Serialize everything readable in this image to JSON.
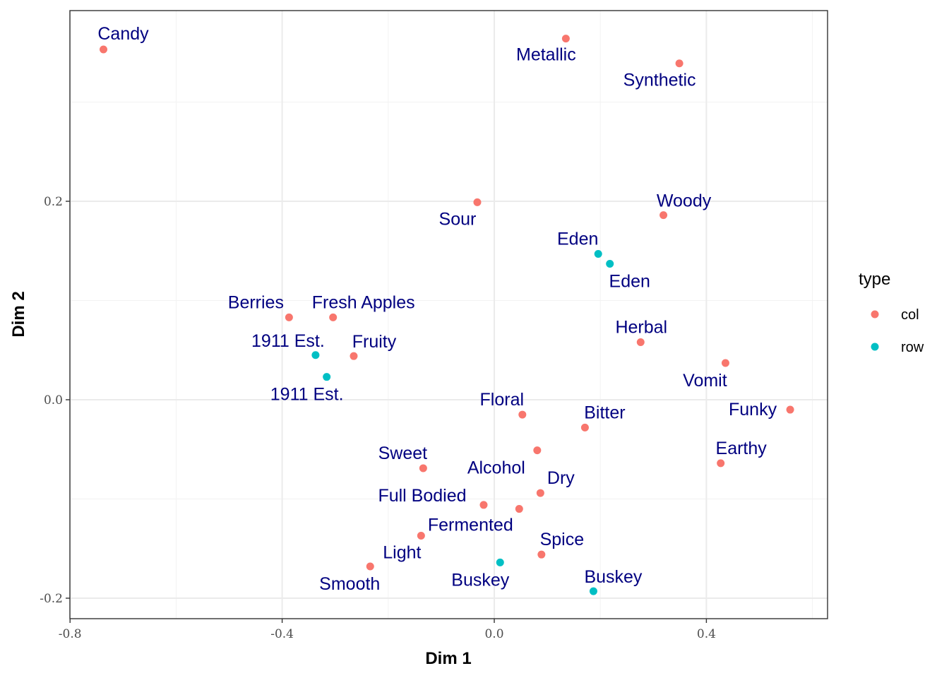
{
  "chart_data": {
    "type": "scatter",
    "title": "",
    "xlabel": "Dim 1",
    "ylabel": "Dim 2",
    "xlim": [
      -0.8,
      0.62
    ],
    "ylim": [
      -0.21,
      0.39
    ],
    "x_ticks": [
      -0.8,
      -0.4,
      0.0,
      0.4
    ],
    "x_tick_labels": [
      "-0.8",
      "-0.4",
      "0.0",
      "0.4"
    ],
    "y_ticks": [
      -0.2,
      0.0,
      0.2
    ],
    "y_tick_labels": [
      "-0.2",
      "0.0",
      "0.2"
    ],
    "grid": true,
    "legend": {
      "title": "type",
      "position": "right",
      "entries": [
        {
          "name": "col",
          "color": "#F8766D"
        },
        {
          "name": "row",
          "color": "#00BFC4"
        }
      ]
    },
    "label_color": "#000080",
    "series": [
      {
        "name": "col",
        "color": "#F8766D",
        "points": [
          {
            "label": "Candy",
            "x": -0.737,
            "y": 0.353
          },
          {
            "label": "Metallic",
            "x": 0.135,
            "y": 0.364
          },
          {
            "label": "Synthetic",
            "x": 0.349,
            "y": 0.339
          },
          {
            "label": "Sour",
            "x": -0.032,
            "y": 0.199
          },
          {
            "label": "Woody",
            "x": 0.319,
            "y": 0.186
          },
          {
            "label": "Berries",
            "x": -0.387,
            "y": 0.083
          },
          {
            "label": "Fresh Apples",
            "x": -0.304,
            "y": 0.083
          },
          {
            "label": "Fruity",
            "x": -0.265,
            "y": 0.044
          },
          {
            "label": "Herbal",
            "x": 0.276,
            "y": 0.058
          },
          {
            "label": "Vomit",
            "x": 0.436,
            "y": 0.037
          },
          {
            "label": "Funky",
            "x": 0.558,
            "y": -0.01
          },
          {
            "label": "Floral",
            "x": 0.053,
            "y": -0.015
          },
          {
            "label": "Bitter",
            "x": 0.171,
            "y": -0.028
          },
          {
            "label": "Alcohol",
            "x": 0.081,
            "y": -0.051
          },
          {
            "label": "Earthy",
            "x": 0.427,
            "y": -0.064
          },
          {
            "label": "Sweet",
            "x": -0.134,
            "y": -0.069
          },
          {
            "label": "Dry",
            "x": 0.087,
            "y": -0.094
          },
          {
            "label": "Full Bodied",
            "x": -0.02,
            "y": -0.106
          },
          {
            "label": "Fermented",
            "x": 0.047,
            "y": -0.11
          },
          {
            "label": "Light",
            "x": -0.138,
            "y": -0.137
          },
          {
            "label": "Spice",
            "x": 0.089,
            "y": -0.156
          },
          {
            "label": "Smooth",
            "x": -0.234,
            "y": -0.168
          }
        ]
      },
      {
        "name": "row",
        "color": "#00BFC4",
        "points": [
          {
            "label": "Eden",
            "x": 0.196,
            "y": 0.147
          },
          {
            "label": "Eden",
            "x": 0.218,
            "y": 0.137
          },
          {
            "label": "1911 Est.",
            "x": -0.337,
            "y": 0.045
          },
          {
            "label": "1911 Est.",
            "x": -0.316,
            "y": 0.023
          },
          {
            "label": "Buskey",
            "x": 0.011,
            "y": -0.164
          },
          {
            "label": "Buskey",
            "x": 0.187,
            "y": -0.193
          }
        ]
      }
    ]
  }
}
